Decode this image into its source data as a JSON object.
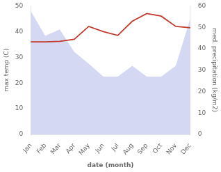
{
  "chart_data": {
    "type": "line",
    "xlabel": "date (month)",
    "ylabel": "max temp (C)",
    "y2label": "med. precipitation (kg/m2)",
    "categories": [
      "Jan",
      "Feb",
      "Mar",
      "Apr",
      "May",
      "Jun",
      "Jul",
      "Aug",
      "Sep",
      "Oct",
      "Nov",
      "Dec"
    ],
    "series": [
      {
        "type": "area",
        "color": "#b0b8e8",
        "axis": "y2",
        "values": [
          57.5,
          46.0,
          49.0,
          38.5,
          33.0,
          27.0,
          27.0,
          32.0,
          27.0,
          27.0,
          32.0,
          54.0
        ]
      },
      {
        "type": "line",
        "color": "#c0392b",
        "values": [
          36.0,
          36.0,
          36.2,
          37.0,
          42.0,
          40.0,
          38.5,
          44.0,
          47.0,
          46.0,
          42.0,
          41.5
        ]
      }
    ],
    "ylim": [
      0,
      50
    ],
    "yticks": [
      0,
      10,
      20,
      30,
      40,
      50
    ],
    "y2lim": [
      0,
      60
    ],
    "y2ticks": [
      0,
      10,
      20,
      30,
      40,
      50,
      60
    ],
    "grid": false
  }
}
